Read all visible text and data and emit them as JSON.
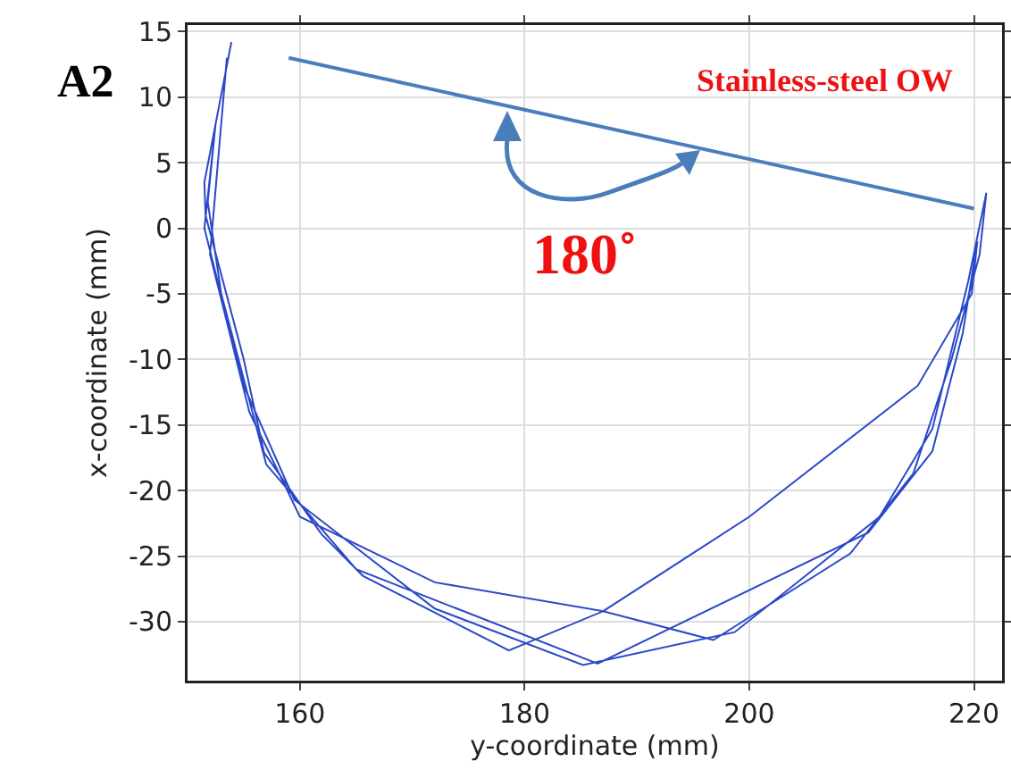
{
  "chart_data": {
    "type": "line",
    "xlabel": "y-coordinate (mm)",
    "ylabel": "x-coordinate (mm)",
    "annotations": [
      "A2",
      "Stainless-steel OW",
      "180˚"
    ],
    "series": [
      {
        "color": "#2a48c8",
        "x": [
          153.9,
          151.5,
          151.6,
          155,
          156.8,
          161.9,
          165.6,
          178.6,
          187,
          196.8,
          209,
          214.6,
          218,
          220.5,
          221.1,
          219.5,
          216.3,
          211.6,
          198.7,
          185.2,
          172,
          159.5,
          155,
          151.5,
          152.5,
          151.8,
          153,
          157,
          165,
          186.5,
          210.6,
          216.3,
          219,
          220.3,
          219.8,
          215,
          200,
          187,
          172,
          160,
          155.5,
          152,
          153.5
        ],
        "values": [
          14.2,
          3.5,
          1,
          -10,
          -17.1,
          -23.3,
          -26.5,
          -32.2,
          -29.2,
          -31.4,
          -24.8,
          -18.7,
          -10,
          -2,
          2.7,
          -4,
          -15.3,
          -22,
          -30.8,
          -33.3,
          -29,
          -20.7,
          -12,
          0,
          8,
          2,
          -5,
          -18,
          -26,
          -33.2,
          -23.2,
          -17,
          -8,
          -1,
          -5,
          -12,
          -22,
          -29.2,
          -27,
          -22,
          -14,
          -2,
          13
        ]
      },
      {
        "color": "#4a7ebb",
        "x": [
          159,
          220
        ],
        "values": [
          13,
          1.5
        ]
      }
    ],
    "xlim": [
      150,
      222.5
    ],
    "xticks": [
      160,
      180,
      200,
      220
    ],
    "ylim": [
      -34.5,
      15.5
    ],
    "yticks": [
      -30,
      -25,
      -20,
      -15,
      -10,
      -5,
      0,
      5,
      10,
      15
    ],
    "grid": true,
    "marker": "none",
    "line_style": "solid"
  }
}
